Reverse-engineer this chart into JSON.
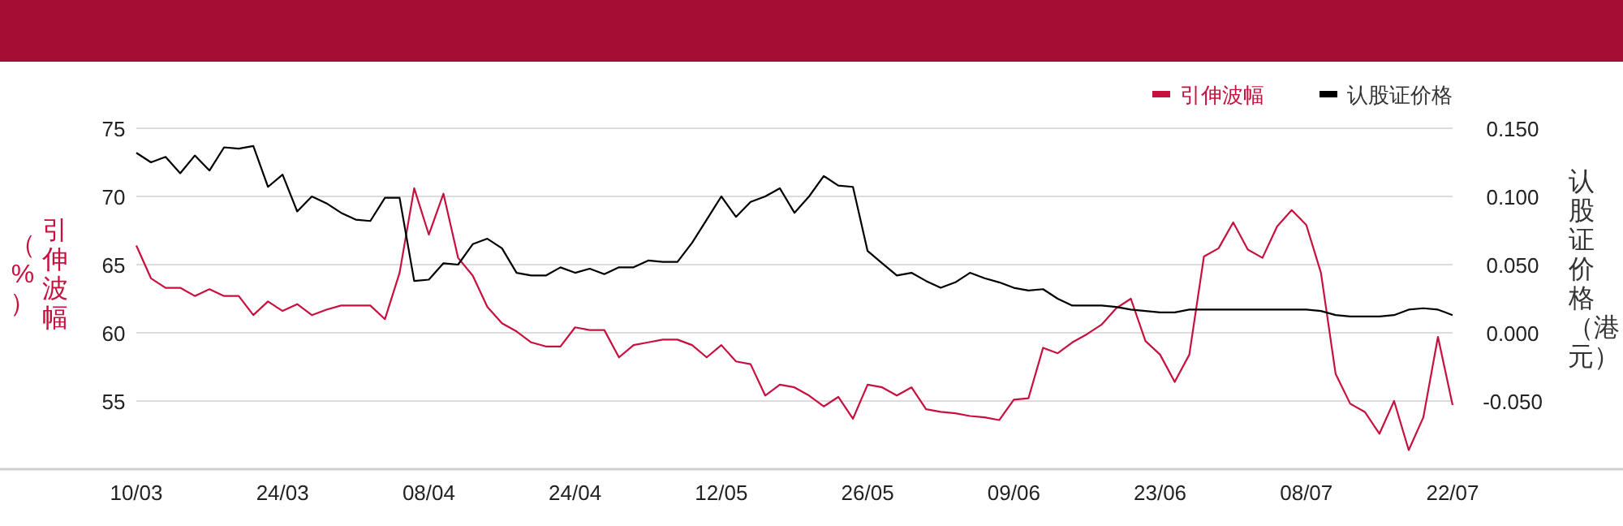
{
  "chart_data": {
    "type": "line",
    "categories": [
      "10/03",
      null,
      null,
      null,
      null,
      null,
      null,
      null,
      null,
      null,
      "24/03",
      null,
      null,
      null,
      null,
      null,
      null,
      null,
      null,
      null,
      "08/04",
      null,
      null,
      null,
      null,
      null,
      null,
      null,
      null,
      null,
      "24/04",
      null,
      null,
      null,
      null,
      null,
      null,
      null,
      null,
      null,
      "12/05",
      null,
      null,
      null,
      null,
      null,
      null,
      null,
      null,
      null,
      "26/05",
      null,
      null,
      null,
      null,
      null,
      null,
      null,
      null,
      null,
      "09/06",
      null,
      null,
      null,
      null,
      null,
      null,
      null,
      null,
      null,
      "23/06",
      null,
      null,
      null,
      null,
      null,
      null,
      null,
      null,
      null,
      "08/07",
      null,
      null,
      null,
      null,
      null,
      null,
      null,
      null,
      null,
      "22/07"
    ],
    "series": [
      {
        "name": "引伸波幅",
        "color": "#c8103e",
        "values": [
          66.4,
          64.0,
          63.3,
          63.3,
          62.7,
          63.2,
          62.7,
          62.7,
          61.3,
          62.3,
          61.6,
          62.1,
          61.3,
          61.7,
          62.0,
          62.0,
          62.0,
          61.0,
          64.4,
          70.6,
          67.2,
          70.2,
          65.5,
          64.2,
          61.9,
          60.7,
          60.1,
          59.3,
          59.0,
          59.0,
          60.4,
          60.2,
          60.2,
          58.2,
          59.1,
          59.3,
          59.5,
          59.5,
          59.1,
          58.2,
          59.1,
          57.9,
          57.7,
          55.4,
          56.2,
          56.0,
          55.4,
          54.6,
          55.3,
          53.7,
          56.2,
          56.0,
          55.4,
          56.0,
          54.4,
          54.2,
          54.1,
          53.9,
          53.8,
          53.6,
          55.1,
          55.2,
          58.9,
          58.5,
          59.3,
          59.9,
          60.6,
          61.8,
          62.5,
          59.4,
          58.4,
          56.4,
          58.4,
          65.6,
          66.2,
          68.1,
          66.1,
          65.5,
          67.8,
          69.0,
          67.9,
          64.4,
          57.0,
          54.8,
          54.2,
          52.6,
          55.0,
          51.4,
          53.8,
          59.7,
          54.7
        ]
      },
      {
        "name": "认股证价格",
        "color": "#000000",
        "axis": "y2",
        "values": [
          0.132,
          0.125,
          0.129,
          0.117,
          0.13,
          0.119,
          0.136,
          0.135,
          0.137,
          0.107,
          0.116,
          0.089,
          0.1,
          0.095,
          0.088,
          0.083,
          0.082,
          0.099,
          0.099,
          0.038,
          0.039,
          0.051,
          0.05,
          0.065,
          0.069,
          0.062,
          0.044,
          0.042,
          0.042,
          0.048,
          0.044,
          0.047,
          0.043,
          0.048,
          0.048,
          0.053,
          0.052,
          0.052,
          0.066,
          0.083,
          0.1,
          0.085,
          0.096,
          0.1,
          0.106,
          0.088,
          0.1,
          0.115,
          0.108,
          0.107,
          0.06,
          0.051,
          0.042,
          0.044,
          0.038,
          0.033,
          0.037,
          0.044,
          0.04,
          0.037,
          0.033,
          0.031,
          0.032,
          0.025,
          0.02,
          0.02,
          0.02,
          0.019,
          0.017,
          0.016,
          0.015,
          0.015,
          0.017,
          0.017,
          0.017,
          0.017,
          0.017,
          0.017,
          0.017,
          0.017,
          0.017,
          0.016,
          0.013,
          0.012,
          0.012,
          0.012,
          0.013,
          0.017,
          0.018,
          0.017,
          0.013
        ]
      }
    ],
    "ylabel": "引伸波幅（%）",
    "y2label": "认股证价格（港元）",
    "ylim": [
      50,
      75
    ],
    "yticks": [
      55,
      60,
      65,
      70,
      75
    ],
    "y2lim": [
      -0.1,
      0.15
    ],
    "y2ticks": [
      {
        "value": -0.05,
        "label": "-0.050"
      },
      {
        "value": 0,
        "label": "0.000"
      },
      {
        "value": 0.05,
        "label": "0.050"
      },
      {
        "value": 0.1,
        "label": "0.100"
      },
      {
        "value": 0.15,
        "label": "0.150"
      }
    ],
    "grid": "y",
    "legend": "top right"
  }
}
